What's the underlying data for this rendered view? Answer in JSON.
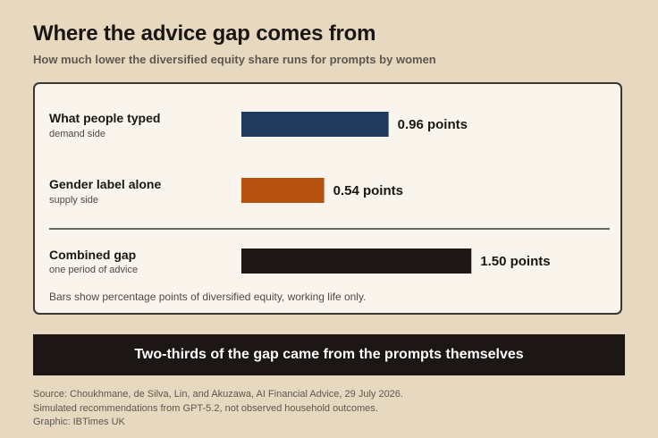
{
  "title": "Where the advice gap comes from",
  "subtitle": "How much lower the diversified equity share runs for prompts by women",
  "chart_data": {
    "type": "bar",
    "orientation": "horizontal",
    "categories": [
      "What people typed",
      "Gender label alone",
      "Combined gap"
    ],
    "category_sublabels": [
      "demand side",
      "supply side",
      "one period of advice"
    ],
    "values": [
      0.96,
      0.54,
      1.5
    ],
    "value_labels": [
      "0.96 points",
      "0.54 points",
      "1.50 points"
    ],
    "colors": [
      "#1f3a5c",
      "#b5520f",
      "#1c1715"
    ],
    "xlim": [
      0,
      2.1
    ],
    "grid": false,
    "note": "Bars show percentage points of diversified equity, working life only."
  },
  "banner": "Two-thirds of the gap came from the prompts themselves",
  "source_lines": [
    "Source: Choukhmane, de Silva, Lin, and Akuzawa, AI Financial Advice, 29 July 2026.",
    "Simulated recommendations from GPT-5.2, not observed household outcomes.",
    "Graphic: IBTimes UK"
  ]
}
